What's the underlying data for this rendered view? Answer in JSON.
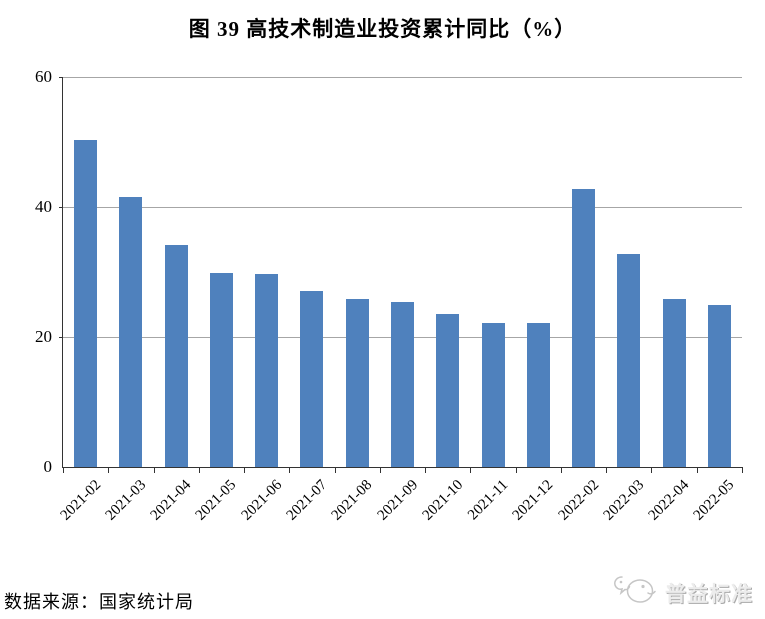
{
  "page": {
    "title": "图 39 高技术制造业投资累计同比（%）",
    "source_note": "数据来源：国家统计局",
    "watermark": {
      "brand": "普益标准",
      "icon": "puyi-logo-icon"
    }
  },
  "chart_data": {
    "type": "bar",
    "title": "图 39 高技术制造业投资累计同比（%）",
    "categories": [
      "2021-02",
      "2021-03",
      "2021-04",
      "2021-05",
      "2021-06",
      "2021-07",
      "2021-08",
      "2021-09",
      "2021-10",
      "2021-11",
      "2021-12",
      "2022-02",
      "2022-03",
      "2022-04",
      "2022-05"
    ],
    "values": [
      50.3,
      41.6,
      34.2,
      29.9,
      29.7,
      27.1,
      25.8,
      25.4,
      23.5,
      22.2,
      22.2,
      42.7,
      32.7,
      25.9,
      24.9
    ],
    "xlabel": "",
    "ylabel": "",
    "ylim": [
      0,
      60
    ],
    "yticks": [
      0,
      20,
      40,
      60
    ],
    "grid": true,
    "legend": false,
    "bar_color": "#4F81BD",
    "gridline_color": "#A6A6A6",
    "axis_color": "#333333"
  }
}
